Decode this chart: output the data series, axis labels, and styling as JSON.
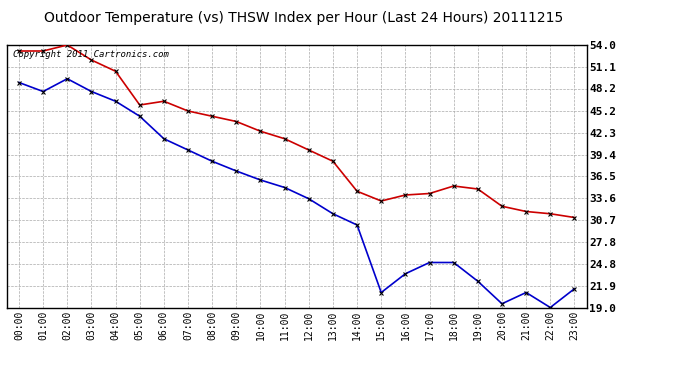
{
  "title": "Outdoor Temperature (vs) THSW Index per Hour (Last 24 Hours) 20111215",
  "copyright_text": "Copyright 2011 Cartronics.com",
  "hours": [
    "00:00",
    "01:00",
    "02:00",
    "03:00",
    "04:00",
    "05:00",
    "06:00",
    "07:00",
    "08:00",
    "09:00",
    "10:00",
    "11:00",
    "12:00",
    "13:00",
    "14:00",
    "15:00",
    "16:00",
    "17:00",
    "18:00",
    "19:00",
    "20:00",
    "21:00",
    "22:00",
    "23:00"
  ],
  "red_data": [
    53.2,
    53.2,
    54.0,
    52.0,
    50.5,
    46.0,
    46.5,
    45.2,
    44.5,
    43.8,
    42.5,
    41.5,
    40.0,
    38.5,
    34.5,
    33.2,
    34.0,
    34.2,
    35.2,
    34.8,
    32.5,
    31.8,
    31.5,
    31.0
  ],
  "blue_data": [
    49.0,
    47.8,
    49.5,
    47.8,
    46.5,
    44.5,
    41.5,
    40.0,
    38.5,
    37.2,
    36.0,
    35.0,
    33.5,
    31.5,
    30.0,
    21.0,
    23.5,
    25.0,
    25.0,
    22.5,
    19.5,
    21.0,
    19.0,
    21.5
  ],
  "red_color": "#cc0000",
  "blue_color": "#0000cc",
  "bg_color": "#ffffff",
  "grid_color": "#aaaaaa",
  "yticks": [
    19.0,
    21.9,
    24.8,
    27.8,
    30.7,
    33.6,
    36.5,
    39.4,
    42.3,
    45.2,
    48.2,
    51.1,
    54.0
  ],
  "ymin": 19.0,
  "ymax": 54.0,
  "title_fontsize": 10,
  "tick_fontsize": 7,
  "ytick_fontsize": 8,
  "marker_size": 3.5,
  "line_width": 1.2
}
